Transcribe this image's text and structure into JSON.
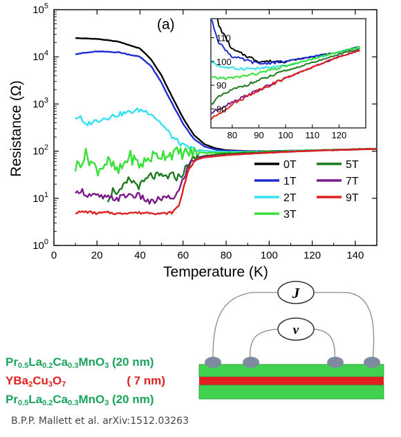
{
  "chart_data": {
    "type": "line",
    "panel_label": "(a)",
    "xlabel": "Temperature (K)",
    "ylabel": "Resistance (Ω)",
    "xlim": [
      0,
      150
    ],
    "ylim_log10": [
      0,
      5
    ],
    "yscale": "log",
    "x_ticks": [
      "0",
      "20",
      "40",
      "60",
      "80",
      "100",
      "120",
      "140"
    ],
    "y_ticks": [
      {
        "base": "10",
        "exp": "0"
      },
      {
        "base": "10",
        "exp": "1"
      },
      {
        "base": "10",
        "exp": "2"
      },
      {
        "base": "10",
        "exp": "3"
      },
      {
        "base": "10",
        "exp": "4"
      },
      {
        "base": "10",
        "exp": "5"
      }
    ],
    "legend": "bottom-right, two columns",
    "series": [
      {
        "name": "0T",
        "color": "#000000",
        "x": [
          10,
          20,
          30,
          40,
          45,
          50,
          55,
          60,
          65,
          70,
          75,
          80,
          90,
          100,
          120,
          150
        ],
        "y": [
          25000,
          24000,
          21000,
          15000,
          9000,
          4000,
          1400,
          500,
          220,
          140,
          115,
          105,
          100,
          100,
          104,
          112
        ]
      },
      {
        "name": "1T",
        "color": "#1c2bd6",
        "x": [
          10,
          20,
          30,
          40,
          45,
          50,
          55,
          60,
          65,
          70,
          75,
          80,
          90,
          100,
          120,
          150
        ],
        "y": [
          11500,
          13000,
          12500,
          10000,
          6500,
          2800,
          1000,
          380,
          180,
          125,
          108,
          102,
          99,
          100,
          104,
          112
        ]
      },
      {
        "name": "2T",
        "color": "#33e0f0",
        "x": [
          10,
          12,
          14,
          20,
          30,
          40,
          45,
          50,
          55,
          60,
          65,
          70,
          75,
          80,
          90,
          100,
          120,
          150
        ],
        "y": [
          500,
          550,
          360,
          450,
          600,
          750,
          650,
          380,
          200,
          130,
          110,
          102,
          98,
          97,
          97,
          98,
          104,
          112
        ]
      },
      {
        "name": "3T",
        "color": "#33e033",
        "x": [
          10,
          15,
          20,
          25,
          30,
          35,
          40,
          45,
          50,
          55,
          60,
          65,
          70,
          80,
          90,
          100,
          120,
          150
        ],
        "y": [
          45,
          85,
          40,
          60,
          35,
          80,
          50,
          75,
          85,
          90,
          92,
          93,
          93,
          93,
          95,
          98,
          104,
          112
        ]
      },
      {
        "name": "5T",
        "color": "#1d7a1d",
        "x": [
          25,
          28,
          30,
          35,
          40,
          45,
          50,
          55,
          58,
          60,
          63,
          66,
          70,
          75,
          80,
          90,
          100,
          120,
          150
        ],
        "y": [
          10,
          16,
          12,
          25,
          18,
          30,
          28,
          30,
          28,
          35,
          55,
          72,
          80,
          85,
          88,
          92,
          96,
          103,
          112
        ]
      },
      {
        "name": "7T",
        "color": "#7a1a8a",
        "x": [
          10,
          12,
          15,
          20,
          25,
          30,
          35,
          40,
          45,
          50,
          55,
          58,
          60,
          63,
          66,
          70,
          75,
          80,
          90,
          100,
          120,
          150
        ],
        "y": [
          11,
          16,
          12,
          11,
          10,
          10,
          12,
          11,
          8,
          10,
          10,
          14,
          25,
          55,
          70,
          77,
          80,
          83,
          88,
          93,
          102,
          112
        ]
      },
      {
        "name": "9T",
        "color": "#e02020",
        "x": [
          10,
          15,
          20,
          25,
          30,
          35,
          40,
          45,
          50,
          55,
          58,
          60,
          62,
          65,
          68,
          70,
          75,
          80,
          90,
          100,
          120,
          150
        ],
        "y": [
          5,
          5.2,
          4.8,
          5,
          4.7,
          5,
          4.9,
          5,
          4.7,
          5,
          7,
          15,
          35,
          60,
          70,
          74,
          78,
          82,
          88,
          93,
          102,
          112
        ]
      }
    ],
    "inset": {
      "xlim": [
        72,
        130
      ],
      "ylim": [
        72,
        118
      ],
      "x_ticks": [
        "80",
        "90",
        "100",
        "110",
        "120"
      ],
      "y_ticks": [
        "80",
        "90",
        "100",
        "110"
      ]
    }
  },
  "diagram": {
    "layers": [
      {
        "name": "Pr0.5La0.2Ca0.3MnO3 (20 nm)",
        "color": "#1aa35a"
      },
      {
        "name": "YBa2Cu3O7 (7 nm)",
        "color": "#e02020"
      },
      {
        "name": "Pr0.5La0.2Ca0.3MnO3 (20 nm)",
        "color": "#1aa35a"
      }
    ],
    "current_label": "J",
    "voltage_label": "v"
  },
  "credit": "B.P.P. Mallett et al. arXiv:1512.03263"
}
